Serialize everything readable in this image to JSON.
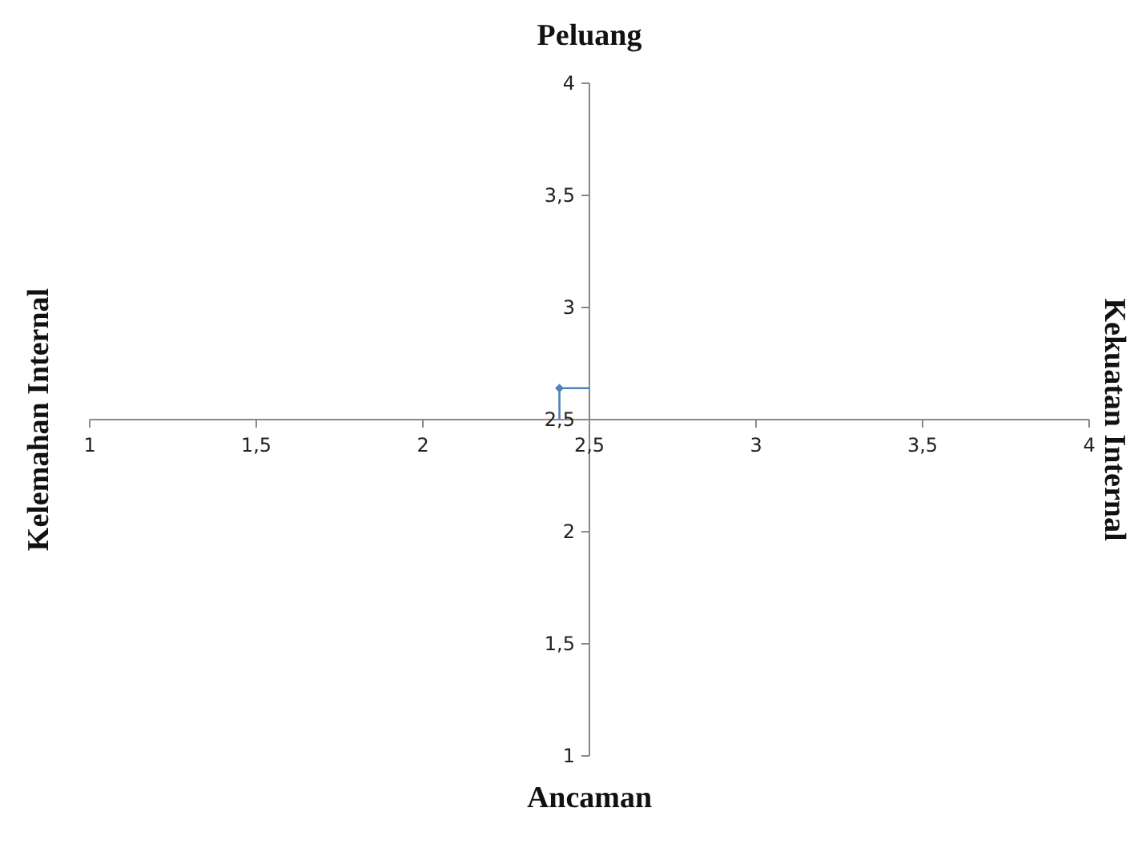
{
  "chart_data": {
    "type": "scatter",
    "annotations": [
      "Peluang",
      "Ancaman",
      "Kelemahan Internal",
      "Kekuatan Internal"
    ],
    "xlim": [
      1,
      4
    ],
    "ylim": [
      1,
      4
    ],
    "xticks": [
      1,
      {
        "value": 1.5,
        "label": "1,5"
      },
      2,
      {
        "value": 2.5,
        "label": "2,5"
      },
      3,
      {
        "value": 3.5,
        "label": "3,5"
      },
      4
    ],
    "yticks": [
      1,
      {
        "value": 1.5,
        "label": "1,5"
      },
      2,
      {
        "value": 2.5,
        "label": "2,5"
      },
      3,
      {
        "value": 3.5,
        "label": "3,5"
      },
      4
    ],
    "grid": false,
    "series": [
      {
        "color": "#4f81bd",
        "marker": "diamond",
        "x": [
          2.41
        ],
        "values": [
          2.64
        ],
        "errors": [
          [
            2.5,
            2.64
          ]
        ],
        "xerrors": [
          [
            2.41,
            2.5
          ]
        ]
      }
    ]
  }
}
